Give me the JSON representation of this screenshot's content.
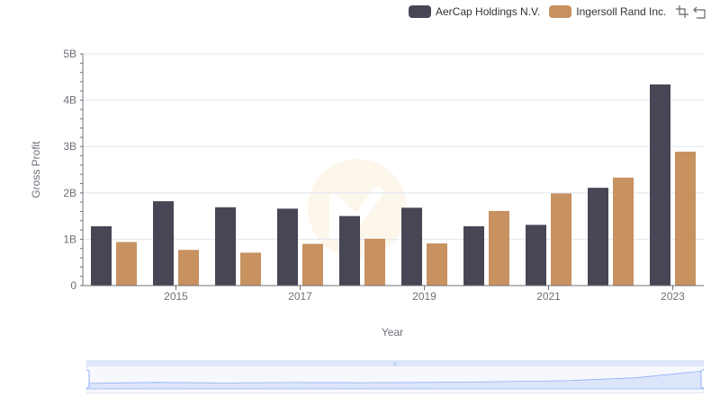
{
  "legend": {
    "items": [
      {
        "label": "AerCap Holdings N.V.",
        "color": "#464655"
      },
      {
        "label": "Ingersoll Rand Inc.",
        "color": "#c79160"
      }
    ]
  },
  "toolbox": {
    "icons": [
      "zoom-icon",
      "zoom-reset-icon"
    ]
  },
  "colors": {
    "grid": "#e0e6f1",
    "axis": "#6e7079",
    "zoom_fill": "#dde5fb",
    "zoom_line": "#8fb0f7"
  },
  "chart_data": {
    "type": "bar",
    "categories": [
      "2014",
      "2015",
      "2016",
      "2017",
      "2018",
      "2019",
      "2020",
      "2021",
      "2022",
      "2023"
    ],
    "x_tick_labels": [
      "2015",
      "2017",
      "2019",
      "2021",
      "2023"
    ],
    "series": [
      {
        "name": "AerCap Holdings N.V.",
        "color": "#464655",
        "values": [
          1.28,
          1.82,
          1.69,
          1.66,
          1.5,
          1.68,
          1.28,
          1.31,
          2.11,
          4.34
        ]
      },
      {
        "name": "Ingersoll Rand Inc.",
        "color": "#c79160",
        "values": [
          0.94,
          0.77,
          0.71,
          0.9,
          1.01,
          0.91,
          1.61,
          1.99,
          2.33,
          2.89
        ]
      }
    ],
    "unit": "B",
    "ylim": [
      0,
      5
    ],
    "y_ticks": [
      "0",
      "1B",
      "2B",
      "3B",
      "4B",
      "5B"
    ],
    "xlabel": "Year",
    "ylabel": "Gross Profit",
    "grid": true,
    "legend_position": "top-right"
  }
}
